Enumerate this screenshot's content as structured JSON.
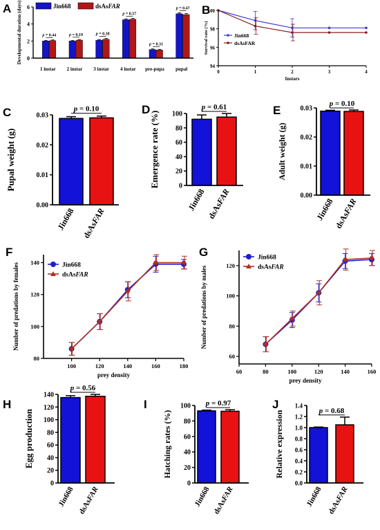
{
  "chart_data": [
    {
      "panel": "A",
      "type": "bar",
      "ylabel": "Developmental duration (days)",
      "ylim": [
        0,
        6
      ],
      "yticks": [
        0,
        2,
        4,
        6
      ],
      "categories": [
        "1 instar",
        "2 instar",
        "3 instar",
        "4 instar",
        "pre-pupa",
        "pupal"
      ],
      "series": [
        {
          "name": "Jin668",
          "color": "#1414c8",
          "values": [
            2.0,
            2.0,
            2.1,
            4.5,
            1.0,
            5.2
          ],
          "errors": [
            0.08,
            0.08,
            0.08,
            0.1,
            0.08,
            0.12
          ]
        },
        {
          "name": "dsAsFAR",
          "color": "#b01818",
          "values": [
            2.05,
            2.1,
            2.2,
            4.55,
            0.95,
            5.1
          ],
          "errors": [
            0.08,
            0.08,
            0.1,
            0.1,
            0.08,
            0.12
          ]
        }
      ],
      "annotations": [
        "p = 0.44",
        "p = 0.19",
        "p = 0.38",
        "p = 0.57",
        "p = 0.31",
        "p = 0.47"
      ]
    },
    {
      "panel": "B",
      "type": "line",
      "xlabel": "Instars",
      "ylabel": "Survival rate (%)",
      "xlim": [
        0,
        4
      ],
      "ylim": [
        94,
        100
      ],
      "xticks": [
        0,
        1,
        2,
        3,
        4
      ],
      "yticks": [
        94,
        96,
        98,
        100
      ],
      "x": [
        0,
        1,
        2,
        3,
        4
      ],
      "series": [
        {
          "name": "Jin668",
          "color": "#3c3cd2",
          "values": [
            100,
            98.9,
            98.1,
            98.1,
            98.1
          ],
          "errors": [
            0,
            1.0,
            1.0,
            0,
            0
          ]
        },
        {
          "name": "dsAsFAR",
          "color": "#8a1a1a",
          "values": [
            100,
            98.3,
            97.6,
            97.6,
            97.6
          ],
          "errors": [
            0,
            0.9,
            0.9,
            0,
            0
          ]
        }
      ]
    },
    {
      "panel": "C",
      "type": "bar",
      "ylabel": "Pupal weight (g)",
      "ylim": [
        0,
        0.03
      ],
      "yticks": [
        "0.00",
        "0.01",
        "0.02",
        "0.03"
      ],
      "categories": [
        "Jin668",
        "dsAsFAR"
      ],
      "values": [
        0.0288,
        0.029
      ],
      "errors": [
        0.0006,
        0.0006
      ],
      "annotation": "p = 0.10"
    },
    {
      "panel": "D",
      "type": "bar",
      "ylabel": "Emergence rate (%)",
      "ylim": [
        0,
        100
      ],
      "yticks": [
        "0",
        "20",
        "40",
        "60",
        "80",
        "100"
      ],
      "categories": [
        "Jin668",
        "dsAsFAR"
      ],
      "values": [
        92,
        95
      ],
      "errors": [
        6,
        5
      ],
      "annotation": "p = 0.61"
    },
    {
      "panel": "E",
      "type": "bar",
      "ylabel": "Adult weight (g)",
      "ylim": [
        0,
        0.03
      ],
      "yticks": [
        "0.00",
        "0.01",
        "0.02",
        "0.03"
      ],
      "categories": [
        "Jin668",
        "dsAsFAR"
      ],
      "values": [
        0.0289,
        0.0288
      ],
      "errors": [
        0.0003,
        0.0005
      ],
      "annotation": "p = 0.10"
    },
    {
      "panel": "F",
      "type": "line",
      "xlabel": "prey density",
      "ylabel": "Number of predations by females",
      "xlim": [
        80,
        180
      ],
      "ylim": [
        80,
        145
      ],
      "xticks": [
        100,
        120,
        140,
        160,
        180
      ],
      "yticks": [
        80,
        100,
        120,
        140
      ],
      "x": [
        100,
        120,
        140,
        160,
        180
      ],
      "series": [
        {
          "name": "Jin668",
          "color": "#1e1ed2",
          "values": [
            86,
            103,
            123,
            139,
            139
          ],
          "errors": [
            4,
            5,
            5,
            5,
            3
          ]
        },
        {
          "name": "dsAsFAR",
          "color": "#b03020",
          "values": [
            86,
            103,
            122,
            140,
            140
          ],
          "errors": [
            4,
            5,
            6,
            5,
            4
          ]
        }
      ]
    },
    {
      "panel": "G",
      "type": "line",
      "xlabel": "prey density",
      "ylabel": "Number of predations by males",
      "xlim": [
        60,
        160
      ],
      "ylim": [
        55,
        130
      ],
      "xticks": [
        60,
        80,
        100,
        120,
        140,
        160
      ],
      "yticks": [
        60,
        80,
        100,
        120
      ],
      "x": [
        80,
        100,
        120,
        140,
        160
      ],
      "series": [
        {
          "name": "Jin668",
          "color": "#1e1ed2",
          "values": [
            68,
            84,
            102,
            123,
            124
          ],
          "errors": [
            5,
            5,
            6,
            5,
            4
          ]
        },
        {
          "name": "dsAsFAR",
          "color": "#b03020",
          "values": [
            68,
            85,
            102,
            124,
            125
          ],
          "errors": [
            5,
            5,
            8,
            7,
            5
          ]
        }
      ]
    },
    {
      "panel": "H",
      "type": "bar",
      "ylabel": "Egg production",
      "ylim": [
        0,
        140
      ],
      "yticks": [
        "0",
        "20",
        "40",
        "60",
        "80",
        "100",
        "120",
        "140"
      ],
      "categories": [
        "Jin668",
        "dsAsFAR"
      ],
      "values": [
        135,
        137
      ],
      "errors": [
        3,
        3
      ],
      "annotation": "p = 0.56"
    },
    {
      "panel": "I",
      "type": "bar",
      "ylabel": "Hatching rates (%)",
      "ylim": [
        0,
        100
      ],
      "yticks": [
        "0",
        "20",
        "40",
        "60",
        "80",
        "100"
      ],
      "categories": [
        "Jin668",
        "dsAsFAR"
      ],
      "values": [
        93,
        92.5
      ],
      "errors": [
        1,
        2
      ],
      "annotation": "p = 0.97"
    },
    {
      "panel": "J",
      "type": "bar",
      "ylabel": "Relative expression",
      "ylim": [
        0,
        1.4
      ],
      "yticks": [
        "0.0",
        "0.2",
        "0.4",
        "0.6",
        "0.8",
        "1.0",
        "1.2",
        "1.4"
      ],
      "categories": [
        "Jin668",
        "dsAsFAR"
      ],
      "values": [
        1.0,
        1.05
      ],
      "errors": [
        0.01,
        0.14
      ],
      "annotation": "p = 0.68"
    }
  ],
  "colors": {
    "blue": "#1212d8",
    "red": "#e81212",
    "darkblue": "#1414c8",
    "darkred": "#b01818"
  }
}
